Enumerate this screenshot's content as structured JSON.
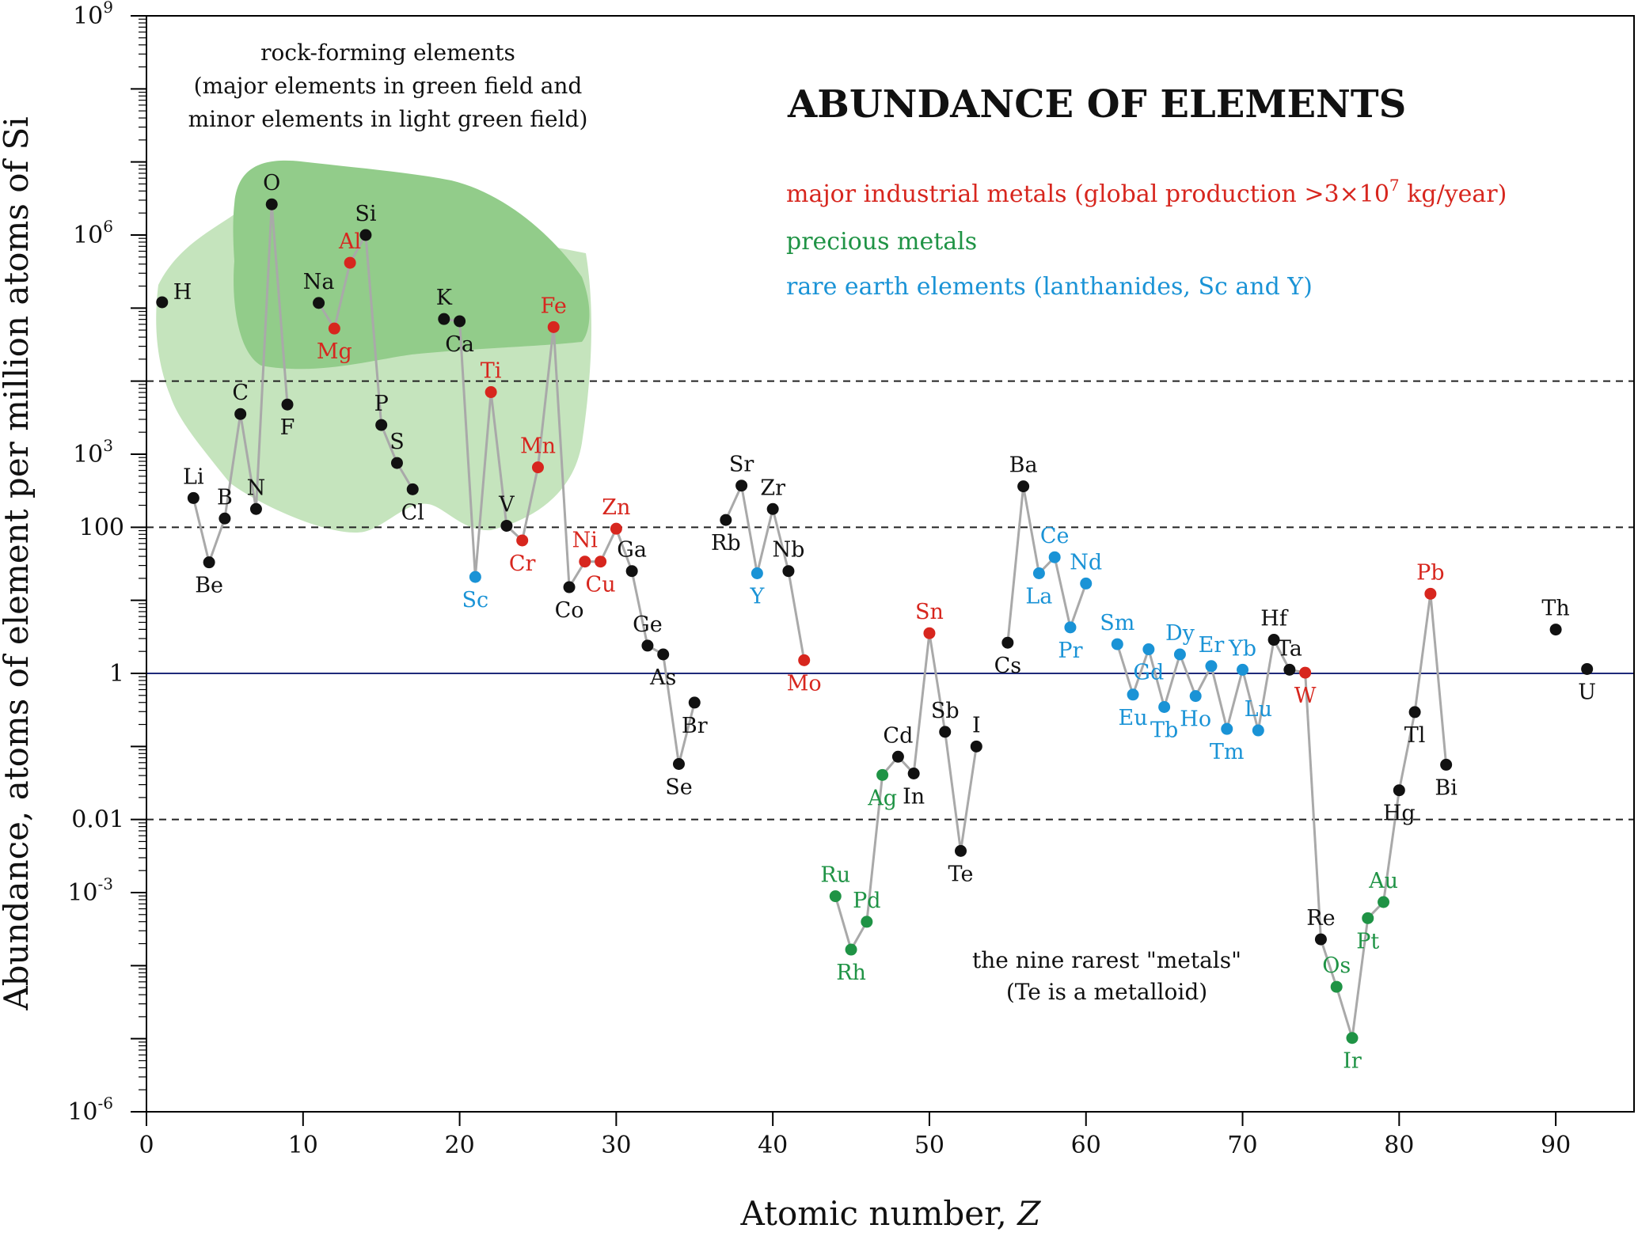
{
  "chart_data": {
    "type": "scatter",
    "title": "ABUNDANCE OF  ELEMENTS",
    "xlabel_main": "Atomic number, ",
    "xlabel_var": "Z",
    "ylabel": "Abundance, atoms of element per million atoms of Si",
    "xlim": [
      0,
      95
    ],
    "ylim_log10": [
      -6,
      9
    ],
    "x_ticks": [
      0,
      10,
      20,
      30,
      40,
      50,
      60,
      70,
      80,
      90
    ],
    "y_tick_labels": [
      {
        "log": 9,
        "base": "10",
        "exp": "9"
      },
      {
        "log": 6,
        "base": "10",
        "exp": "6"
      },
      {
        "log": 3,
        "base": "10",
        "exp": "3"
      },
      {
        "log": 2,
        "base": "100",
        "exp": ""
      },
      {
        "log": 0,
        "base": "1",
        "exp": ""
      },
      {
        "log": -2,
        "base": "0.01",
        "exp": ""
      },
      {
        "log": -3,
        "base": "10",
        "exp": "-3"
      },
      {
        "log": -6,
        "base": "10",
        "exp": "-6"
      }
    ],
    "reference_lines": [
      {
        "log": 4,
        "style": "dashed"
      },
      {
        "log": 2,
        "style": "dashed"
      },
      {
        "log": 0,
        "style": "solid"
      },
      {
        "log": -2,
        "style": "dashed"
      }
    ],
    "legend": {
      "major": {
        "text_before": "major industrial metals (global production >3×10",
        "sup": "7",
        "text_after": " kg/year)",
        "color": "#d7261e"
      },
      "precious": {
        "text": "precious metals",
        "color": "#1f9345"
      },
      "ree": {
        "text": "rare earth elements (lanthanides, Sc and Y)",
        "color": "#1a93d6"
      }
    },
    "category_colors": {
      "other": "#111111",
      "major": "#d7261e",
      "precious": "#1f9345",
      "ree": "#1a93d6"
    },
    "region_colors": {
      "major_field": "#92cc8a",
      "minor_field": "#c5e4bd"
    },
    "annotations": {
      "rock1": "rock-forming elements",
      "rock2": "(major elements in green field and",
      "rock3": "minor elements in light green field)",
      "rare1": "the nine rarest \"metals\"",
      "rare2": "(Te is a metalloid)"
    },
    "series": [
      {
        "symbol": "H",
        "z": 1,
        "log": 5.08,
        "cat": "other",
        "lp": "e"
      },
      {
        "symbol": "Li",
        "z": 3,
        "log": 2.4,
        "cat": "other",
        "lp": "n"
      },
      {
        "symbol": "Be",
        "z": 4,
        "log": 1.52,
        "cat": "other",
        "lp": "s"
      },
      {
        "symbol": "B",
        "z": 5,
        "log": 2.12,
        "cat": "other",
        "lp": "n"
      },
      {
        "symbol": "C",
        "z": 6,
        "log": 3.55,
        "cat": "other",
        "lp": "n"
      },
      {
        "symbol": "N",
        "z": 7,
        "log": 2.25,
        "cat": "other",
        "lp": "n"
      },
      {
        "symbol": "O",
        "z": 8,
        "log": 6.42,
        "cat": "other",
        "lp": "n"
      },
      {
        "symbol": "F",
        "z": 9,
        "log": 3.68,
        "cat": "other",
        "lp": "s"
      },
      {
        "symbol": "Na",
        "z": 11,
        "log": 5.07,
        "cat": "other",
        "lp": "n"
      },
      {
        "symbol": "Mg",
        "z": 12,
        "log": 4.72,
        "cat": "major",
        "lp": "s"
      },
      {
        "symbol": "Al",
        "z": 13,
        "log": 5.62,
        "cat": "major",
        "lp": "n"
      },
      {
        "symbol": "Si",
        "z": 14,
        "log": 6.0,
        "cat": "other",
        "lp": "n"
      },
      {
        "symbol": "P",
        "z": 15,
        "log": 3.4,
        "cat": "other",
        "lp": "n"
      },
      {
        "symbol": "S",
        "z": 16,
        "log": 2.88,
        "cat": "other",
        "lp": "n"
      },
      {
        "symbol": "Cl",
        "z": 17,
        "log": 2.52,
        "cat": "other",
        "lp": "s"
      },
      {
        "symbol": "K",
        "z": 19,
        "log": 4.85,
        "cat": "other",
        "lp": "n"
      },
      {
        "symbol": "Ca",
        "z": 20,
        "log": 4.82,
        "cat": "other",
        "lp": "s"
      },
      {
        "symbol": "Sc",
        "z": 21,
        "log": 1.32,
        "cat": "ree",
        "lp": "s"
      },
      {
        "symbol": "Ti",
        "z": 22,
        "log": 3.85,
        "cat": "major",
        "lp": "n"
      },
      {
        "symbol": "V",
        "z": 23,
        "log": 2.02,
        "cat": "other",
        "lp": "n"
      },
      {
        "symbol": "Cr",
        "z": 24,
        "log": 1.82,
        "cat": "major",
        "lp": "s"
      },
      {
        "symbol": "Mn",
        "z": 25,
        "log": 2.82,
        "cat": "major",
        "lp": "n"
      },
      {
        "symbol": "Fe",
        "z": 26,
        "log": 4.74,
        "cat": "major",
        "lp": "n"
      },
      {
        "symbol": "Co",
        "z": 27,
        "log": 1.18,
        "cat": "other",
        "lp": "s"
      },
      {
        "symbol": "Ni",
        "z": 28,
        "log": 1.53,
        "cat": "major",
        "lp": "n"
      },
      {
        "symbol": "Cu",
        "z": 29,
        "log": 1.53,
        "cat": "major",
        "lp": "s"
      },
      {
        "symbol": "Zn",
        "z": 30,
        "log": 1.98,
        "cat": "major",
        "lp": "n"
      },
      {
        "symbol": "Ga",
        "z": 31,
        "log": 1.4,
        "cat": "other",
        "lp": "n"
      },
      {
        "symbol": "Ge",
        "z": 32,
        "log": 0.38,
        "cat": "other",
        "lp": "n"
      },
      {
        "symbol": "As",
        "z": 33,
        "log": 0.26,
        "cat": "other",
        "lp": "s"
      },
      {
        "symbol": "Se",
        "z": 34,
        "log": -1.24,
        "cat": "other",
        "lp": "s"
      },
      {
        "symbol": "Br",
        "z": 35,
        "log": -0.4,
        "cat": "other",
        "lp": "s"
      },
      {
        "symbol": "Rb",
        "z": 37,
        "log": 2.1,
        "cat": "other",
        "lp": "s"
      },
      {
        "symbol": "Sr",
        "z": 38,
        "log": 2.57,
        "cat": "other",
        "lp": "n"
      },
      {
        "symbol": "Y",
        "z": 39,
        "log": 1.37,
        "cat": "ree",
        "lp": "s"
      },
      {
        "symbol": "Zr",
        "z": 40,
        "log": 2.25,
        "cat": "other",
        "lp": "n"
      },
      {
        "symbol": "Nb",
        "z": 41,
        "log": 1.4,
        "cat": "other",
        "lp": "n"
      },
      {
        "symbol": "Mo",
        "z": 42,
        "log": 0.18,
        "cat": "major",
        "lp": "s"
      },
      {
        "symbol": "Ru",
        "z": 44,
        "log": -3.05,
        "cat": "precious",
        "lp": "n"
      },
      {
        "symbol": "Rh",
        "z": 45,
        "log": -3.78,
        "cat": "precious",
        "lp": "s"
      },
      {
        "symbol": "Pd",
        "z": 46,
        "log": -3.4,
        "cat": "precious",
        "lp": "n"
      },
      {
        "symbol": "Ag",
        "z": 47,
        "log": -1.39,
        "cat": "precious",
        "lp": "s"
      },
      {
        "symbol": "Cd",
        "z": 48,
        "log": -1.14,
        "cat": "other",
        "lp": "n"
      },
      {
        "symbol": "In",
        "z": 49,
        "log": -1.37,
        "cat": "other",
        "lp": "s"
      },
      {
        "symbol": "Sn",
        "z": 50,
        "log": 0.55,
        "cat": "major",
        "lp": "n"
      },
      {
        "symbol": "Sb",
        "z": 51,
        "log": -0.8,
        "cat": "other",
        "lp": "n"
      },
      {
        "symbol": "Te",
        "z": 52,
        "log": -2.43,
        "cat": "other",
        "lp": "s"
      },
      {
        "symbol": "I",
        "z": 53,
        "log": -1.0,
        "cat": "other",
        "lp": "n"
      },
      {
        "symbol": "Cs",
        "z": 55,
        "log": 0.42,
        "cat": "other",
        "lp": "s"
      },
      {
        "symbol": "Ba",
        "z": 56,
        "log": 2.56,
        "cat": "other",
        "lp": "n"
      },
      {
        "symbol": "La",
        "z": 57,
        "log": 1.37,
        "cat": "ree",
        "lp": "s"
      },
      {
        "symbol": "Ce",
        "z": 58,
        "log": 1.59,
        "cat": "ree",
        "lp": "n"
      },
      {
        "symbol": "Pr",
        "z": 59,
        "log": 0.63,
        "cat": "ree",
        "lp": "s"
      },
      {
        "symbol": "Nd",
        "z": 60,
        "log": 1.23,
        "cat": "ree",
        "lp": "n"
      },
      {
        "symbol": "Sm",
        "z": 62,
        "log": 0.4,
        "cat": "ree",
        "lp": "n"
      },
      {
        "symbol": "Eu",
        "z": 63,
        "log": -0.29,
        "cat": "ree",
        "lp": "s"
      },
      {
        "symbol": "Gd",
        "z": 64,
        "log": 0.33,
        "cat": "ree",
        "lp": "s"
      },
      {
        "symbol": "Tb",
        "z": 65,
        "log": -0.46,
        "cat": "ree",
        "lp": "s"
      },
      {
        "symbol": "Dy",
        "z": 66,
        "log": 0.26,
        "cat": "ree",
        "lp": "n"
      },
      {
        "symbol": "Ho",
        "z": 67,
        "log": -0.31,
        "cat": "ree",
        "lp": "s"
      },
      {
        "symbol": "Er",
        "z": 68,
        "log": 0.1,
        "cat": "ree",
        "lp": "n"
      },
      {
        "symbol": "Tm",
        "z": 69,
        "log": -0.76,
        "cat": "ree",
        "lp": "s"
      },
      {
        "symbol": "Yb",
        "z": 70,
        "log": 0.05,
        "cat": "ree",
        "lp": "n"
      },
      {
        "symbol": "Lu",
        "z": 71,
        "log": -0.78,
        "cat": "ree",
        "lp": "n"
      },
      {
        "symbol": "Hf",
        "z": 72,
        "log": 0.46,
        "cat": "other",
        "lp": "n"
      },
      {
        "symbol": "Ta",
        "z": 73,
        "log": 0.05,
        "cat": "other",
        "lp": "n"
      },
      {
        "symbol": "W",
        "z": 74,
        "log": 0.01,
        "cat": "major",
        "lp": "s"
      },
      {
        "symbol": "Re",
        "z": 75,
        "log": -3.64,
        "cat": "other",
        "lp": "n"
      },
      {
        "symbol": "Os",
        "z": 76,
        "log": -4.29,
        "cat": "precious",
        "lp": "n"
      },
      {
        "symbol": "Ir",
        "z": 77,
        "log": -4.99,
        "cat": "precious",
        "lp": "s"
      },
      {
        "symbol": "Pt",
        "z": 78,
        "log": -3.35,
        "cat": "precious",
        "lp": "s"
      },
      {
        "symbol": "Au",
        "z": 79,
        "log": -3.13,
        "cat": "precious",
        "lp": "n"
      },
      {
        "symbol": "Hg",
        "z": 80,
        "log": -1.6,
        "cat": "other",
        "lp": "s"
      },
      {
        "symbol": "Tl",
        "z": 81,
        "log": -0.53,
        "cat": "other",
        "lp": "s"
      },
      {
        "symbol": "Pb",
        "z": 82,
        "log": 1.09,
        "cat": "major",
        "lp": "n"
      },
      {
        "symbol": "Bi",
        "z": 83,
        "log": -1.25,
        "cat": "other",
        "lp": "s"
      },
      {
        "symbol": "Th",
        "z": 90,
        "log": 0.6,
        "cat": "other",
        "lp": "n"
      },
      {
        "symbol": "U",
        "z": 92,
        "log": 0.06,
        "cat": "other",
        "lp": "s"
      }
    ]
  }
}
